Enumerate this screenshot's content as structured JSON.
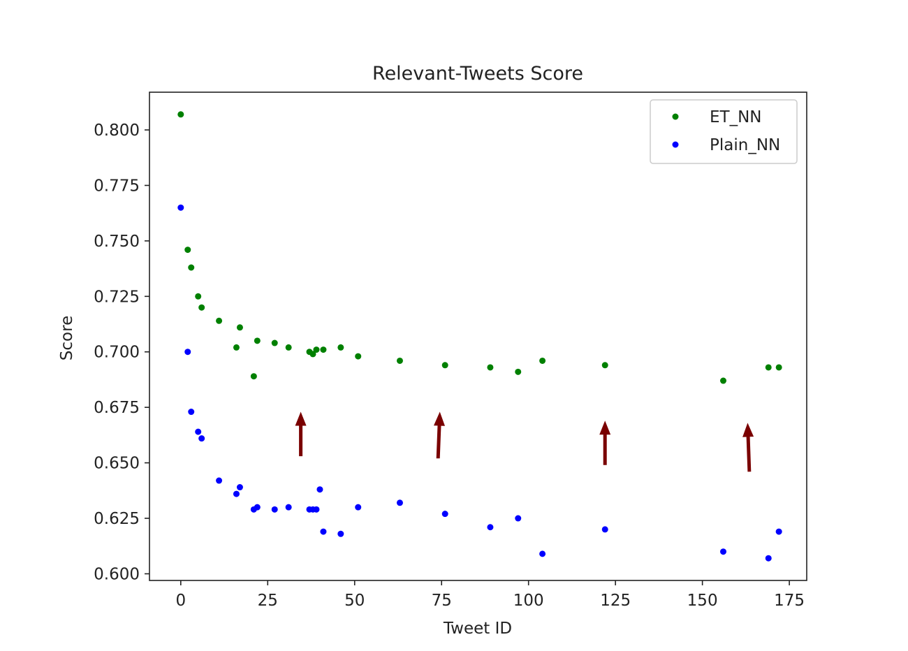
{
  "chart_data": {
    "type": "scatter",
    "title": "Relevant-Tweets Score",
    "xlabel": "Tweet ID",
    "ylabel": "Score",
    "xlim": [
      -9,
      180
    ],
    "ylim": [
      0.597,
      0.817
    ],
    "xticks": [
      0,
      25,
      50,
      75,
      100,
      125,
      150,
      175
    ],
    "yticks": [
      0.6,
      0.625,
      0.65,
      0.675,
      0.7,
      0.725,
      0.75,
      0.775,
      0.8
    ],
    "xtick_labels": [
      "0",
      "25",
      "50",
      "75",
      "100",
      "125",
      "150",
      "175"
    ],
    "ytick_labels": [
      "0.600",
      "0.625",
      "0.650",
      "0.675",
      "0.700",
      "0.725",
      "0.750",
      "0.775",
      "0.800"
    ],
    "grid": false,
    "legend_position": "top-right",
    "series": [
      {
        "name": "ET_NN",
        "color": "#008000",
        "x": [
          0,
          2,
          3,
          5,
          6,
          11,
          16,
          17,
          21,
          22,
          27,
          31,
          37,
          38,
          39,
          41,
          46,
          51,
          63,
          76,
          89,
          97,
          104,
          122,
          156,
          169,
          172
        ],
        "y": [
          0.807,
          0.746,
          0.738,
          0.725,
          0.72,
          0.714,
          0.702,
          0.711,
          0.689,
          0.705,
          0.704,
          0.702,
          0.7,
          0.699,
          0.701,
          0.701,
          0.702,
          0.698,
          0.696,
          0.694,
          0.693,
          0.691,
          0.696,
          0.694,
          0.687,
          0.693,
          0.693
        ]
      },
      {
        "name": "Plain_NN",
        "color": "#0000ff",
        "x": [
          0,
          2,
          3,
          5,
          6,
          11,
          16,
          17,
          21,
          22,
          27,
          31,
          37,
          38,
          39,
          40,
          41,
          46,
          51,
          63,
          76,
          89,
          97,
          104,
          122,
          156,
          169,
          172
        ],
        "y": [
          0.765,
          0.7,
          0.673,
          0.664,
          0.661,
          0.642,
          0.636,
          0.639,
          0.629,
          0.63,
          0.629,
          0.63,
          0.629,
          0.629,
          0.629,
          0.638,
          0.619,
          0.618,
          0.63,
          0.632,
          0.627,
          0.621,
          0.625,
          0.609,
          0.62,
          0.61,
          0.607,
          0.619
        ]
      }
    ],
    "annotations": [
      {
        "type": "arrow",
        "color": "#7a0000",
        "x_start": 34.5,
        "y_start": 0.653,
        "x_end": 34.5,
        "y_end": 0.673
      },
      {
        "type": "arrow",
        "color": "#7a0000",
        "x_start": 74,
        "y_start": 0.652,
        "x_end": 74.5,
        "y_end": 0.673
      },
      {
        "type": "arrow",
        "color": "#7a0000",
        "x_start": 122,
        "y_start": 0.649,
        "x_end": 122,
        "y_end": 0.669
      },
      {
        "type": "arrow",
        "color": "#7a0000",
        "x_start": 163.5,
        "y_start": 0.646,
        "x_end": 163,
        "y_end": 0.668
      }
    ]
  }
}
